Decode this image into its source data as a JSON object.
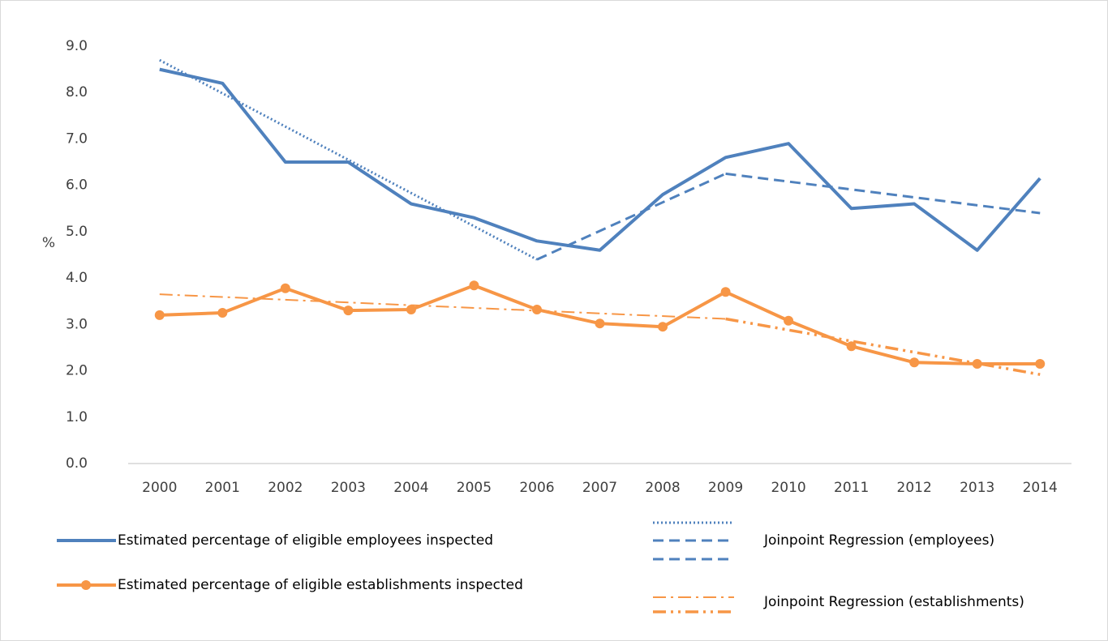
{
  "chart_data": {
    "type": "line",
    "y_label": "%",
    "x": [
      2000,
      2001,
      2002,
      2003,
      2004,
      2005,
      2006,
      2007,
      2008,
      2009,
      2010,
      2011,
      2012,
      2013,
      2014
    ],
    "xlim": [
      1999.5,
      2014.5
    ],
    "xticks": [
      2000,
      2001,
      2002,
      2003,
      2004,
      2005,
      2006,
      2007,
      2008,
      2009,
      2010,
      2011,
      2012,
      2013,
      2014
    ],
    "ylim": [
      0,
      9
    ],
    "yticks": [
      {
        "value": 0,
        "label": "0.0"
      },
      {
        "value": 1,
        "label": "1.0"
      },
      {
        "value": 2,
        "label": "2.0"
      },
      {
        "value": 3,
        "label": "3.0"
      },
      {
        "value": 4,
        "label": "4.0"
      },
      {
        "value": 5,
        "label": "5.0"
      },
      {
        "value": 6,
        "label": "6.0"
      },
      {
        "value": 7,
        "label": "7.0"
      },
      {
        "value": 8,
        "label": "8.0"
      },
      {
        "value": 9,
        "label": "9.0"
      }
    ],
    "grid": false,
    "series": [
      {
        "name": "Estimated percentage of eligible employees inspected",
        "color": "#4f81bd",
        "marker": false,
        "values": [
          8.5,
          8.2,
          6.5,
          6.5,
          5.6,
          5.3,
          4.8,
          4.6,
          5.8,
          6.6,
          6.9,
          5.5,
          5.6,
          4.6,
          6.15
        ]
      },
      {
        "name": "Estimated percentage of eligible establishments inspected",
        "color": "#f79646",
        "marker": true,
        "values": [
          3.2,
          3.25,
          3.78,
          3.3,
          3.32,
          3.84,
          3.32,
          3.02,
          2.95,
          3.7,
          3.08,
          2.53,
          2.18,
          2.15,
          2.15
        ]
      }
    ],
    "regression_lines": [
      {
        "name": "Joinpoint Regression (employees)",
        "color": "#4f81bd",
        "segments": [
          {
            "dash": "dotted",
            "width": 3,
            "x": [
              2000,
              2006
            ],
            "values": [
              8.7,
              4.4
            ]
          },
          {
            "dash": "dashed",
            "width": 3,
            "x": [
              2006,
              2009
            ],
            "values": [
              4.4,
              6.25
            ]
          },
          {
            "dash": "dashed",
            "width": 3,
            "x": [
              2009,
              2014
            ],
            "values": [
              6.25,
              5.4
            ]
          }
        ]
      },
      {
        "name": "Joinpoint Regression (establishments)",
        "color": "#f79646",
        "segments": [
          {
            "dash": "dash-dot",
            "width": 2,
            "x": [
              2000,
              2009
            ],
            "values": [
              3.65,
              3.12
            ]
          },
          {
            "dash": "dash-dot-dot",
            "width": 3.5,
            "x": [
              2009,
              2014
            ],
            "values": [
              3.12,
              1.92
            ]
          }
        ]
      }
    ]
  }
}
